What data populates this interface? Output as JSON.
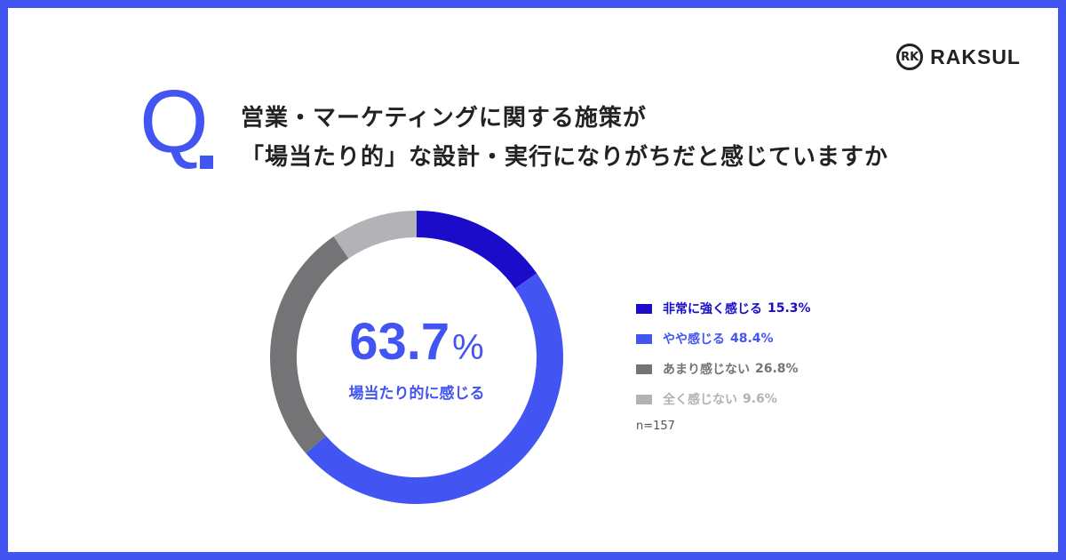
{
  "brand": {
    "name": "RAKSUL",
    "mark_icon": "rk-circle-logo-icon"
  },
  "question": {
    "prefix": "Q",
    "line1": "営業・マーケティングに関する施策が",
    "line2": "「場当たり的」な設計・実行になりがちだと感じていますか"
  },
  "chart_data": {
    "type": "pie",
    "donut": true,
    "title": "",
    "center_value": "63.7",
    "center_unit": "%",
    "center_label": "場当たり的に感じる",
    "sample": "n=157",
    "legend_position": "right",
    "series": [
      {
        "name": "非常に強く感じる",
        "label": "15.3%",
        "value": 15.3,
        "color": "#1a0cc8"
      },
      {
        "name": "やや感じる",
        "label": "48.4%",
        "value": 48.4,
        "color": "#4255f2"
      },
      {
        "name": "あまり感じない",
        "label": "26.8%",
        "value": 26.8,
        "color": "#747477"
      },
      {
        "name": "全く感じない",
        "label": "9.6%",
        "value": 9.6,
        "color": "#b3b2b6"
      }
    ]
  }
}
